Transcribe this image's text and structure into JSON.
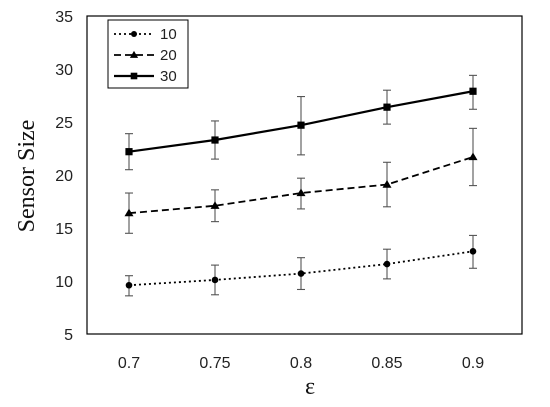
{
  "chart_data": {
    "type": "line",
    "xlabel": "ε",
    "ylabel": "Sensor Size",
    "x": [
      0.7,
      0.75,
      0.8,
      0.85,
      0.9
    ],
    "x_tick_labels": [
      "0.7",
      "0.75",
      "0.8",
      "0.85",
      "0.9"
    ],
    "ylim": [
      5,
      35
    ],
    "y_ticks": [
      5,
      10,
      15,
      20,
      25,
      30,
      35
    ],
    "grid": false,
    "legend_position": "top-left",
    "series": [
      {
        "name": "10",
        "line_style": "dotted",
        "marker": "circle",
        "color": "#000000",
        "values": [
          9.6,
          10.1,
          10.7,
          11.6,
          12.8
        ],
        "error": [
          [
            8.6,
            10.5
          ],
          [
            8.7,
            11.5
          ],
          [
            9.2,
            12.2
          ],
          [
            10.2,
            13.0
          ],
          [
            11.2,
            14.3
          ]
        ]
      },
      {
        "name": "20",
        "line_style": "dashed",
        "marker": "triangle",
        "color": "#000000",
        "values": [
          16.4,
          17.1,
          18.3,
          19.1,
          21.7
        ],
        "error": [
          [
            14.5,
            18.3
          ],
          [
            15.6,
            18.6
          ],
          [
            16.8,
            19.7
          ],
          [
            17.0,
            21.2
          ],
          [
            19.0,
            24.4
          ]
        ]
      },
      {
        "name": "30",
        "line_style": "solid",
        "marker": "square",
        "color": "#000000",
        "values": [
          22.2,
          23.3,
          24.7,
          26.4,
          27.9
        ],
        "error": [
          [
            20.5,
            23.9
          ],
          [
            21.5,
            25.1
          ],
          [
            21.9,
            27.4
          ],
          [
            24.8,
            28.0
          ],
          [
            26.2,
            29.4
          ]
        ]
      }
    ]
  }
}
